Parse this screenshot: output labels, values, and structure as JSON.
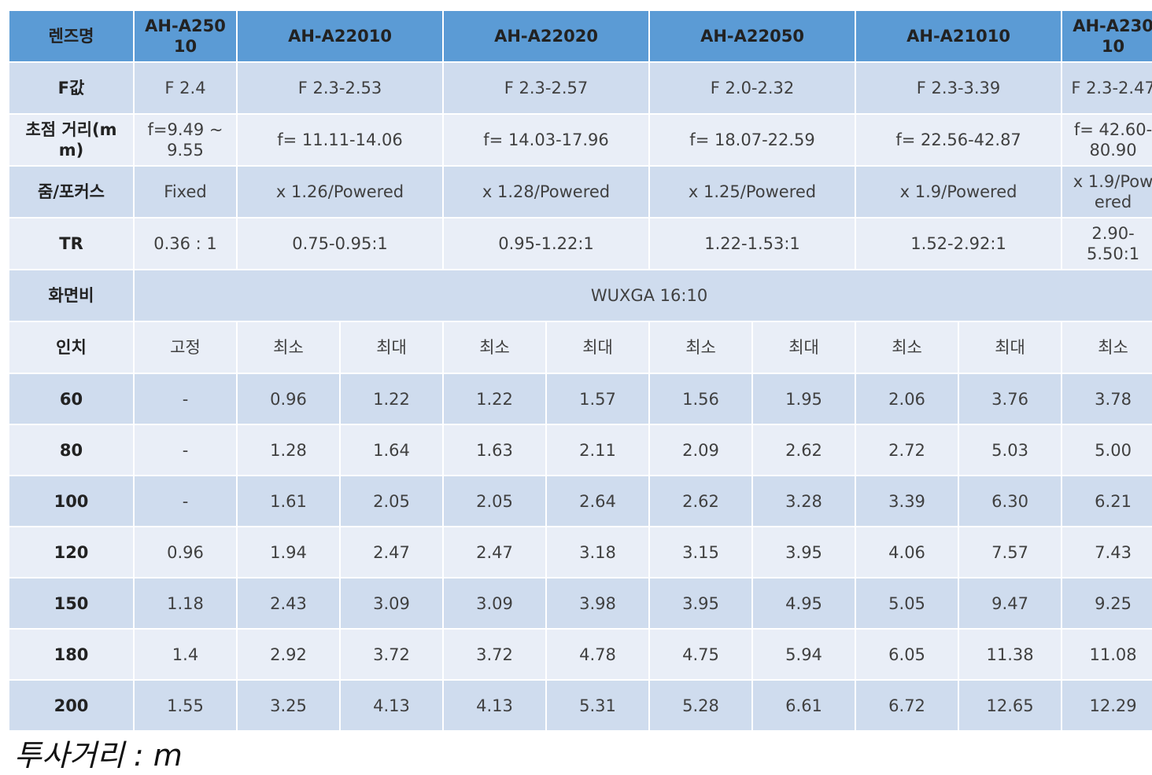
{
  "header": {
    "label": "렌즈명",
    "lenses": [
      "AH-A250 10",
      "AH-A22010",
      "AH-A22020",
      "AH-A22050",
      "AH-A21010",
      "AH-A230 10"
    ]
  },
  "specs": [
    {
      "label": "F값",
      "values": [
        "F 2.4",
        "F 2.3-2.53",
        "F 2.3-2.57",
        "F 2.0-2.32",
        "F 2.3-3.39",
        "F 2.3-2.47"
      ]
    },
    {
      "label": "초점 거리(m m)",
      "values": [
        "f=9.49 ~ 9.55",
        "f= 11.11-14.06",
        "f= 14.03-17.96",
        "f= 18.07-22.59",
        "f= 22.56-42.87",
        "f= 42.60-80.90"
      ]
    },
    {
      "label": "줌/포커스",
      "values": [
        "Fixed",
        "x 1.26/Powered",
        "x 1.28/Powered",
        "x 1.25/Powered",
        "x 1.9/Powered",
        "x 1.9/Pow ered"
      ]
    },
    {
      "label": "TR",
      "values": [
        "0.36 : 1",
        "0.75-0.95:1",
        "0.95-1.22:1",
        "1.22-1.53:1",
        "1.52-2.92:1",
        "2.90-5.50:1"
      ]
    }
  ],
  "aspect": {
    "label": "화면비",
    "value": "WUXGA 16:10"
  },
  "size_header": {
    "label": "인치",
    "columns": [
      "고정",
      "최소",
      "최대",
      "최소",
      "최대",
      "최소",
      "최대",
      "최소",
      "최대",
      "최소"
    ]
  },
  "rows": [
    {
      "inch": "60",
      "values": [
        "-",
        "0.96",
        "1.22",
        "1.22",
        "1.57",
        "1.56",
        "1.95",
        "2.06",
        "3.76",
        "3.78"
      ]
    },
    {
      "inch": "80",
      "values": [
        "-",
        "1.28",
        "1.64",
        "1.63",
        "2.11",
        "2.09",
        "2.62",
        "2.72",
        "5.03",
        "5.00"
      ]
    },
    {
      "inch": "100",
      "values": [
        "-",
        "1.61",
        "2.05",
        "2.05",
        "2.64",
        "2.62",
        "3.28",
        "3.39",
        "6.30",
        "6.21"
      ]
    },
    {
      "inch": "120",
      "values": [
        "0.96",
        "1.94",
        "2.47",
        "2.47",
        "3.18",
        "3.15",
        "3.95",
        "4.06",
        "7.57",
        "7.43"
      ]
    },
    {
      "inch": "150",
      "values": [
        "1.18",
        "2.43",
        "3.09",
        "3.09",
        "3.98",
        "3.95",
        "4.95",
        "5.05",
        "9.47",
        "9.25"
      ]
    },
    {
      "inch": "180",
      "values": [
        "1.4",
        "2.92",
        "3.72",
        "3.72",
        "4.78",
        "4.75",
        "5.94",
        "6.05",
        "11.38",
        "11.08"
      ]
    },
    {
      "inch": "200",
      "values": [
        "1.55",
        "3.25",
        "4.13",
        "4.13",
        "5.31",
        "5.28",
        "6.61",
        "6.72",
        "12.65",
        "12.29"
      ]
    }
  ],
  "footnote": "투사거리 : m",
  "colors": {
    "header_bg": "#5b9bd5",
    "row_dark": "#cfdcee",
    "row_light": "#e9eef7"
  }
}
